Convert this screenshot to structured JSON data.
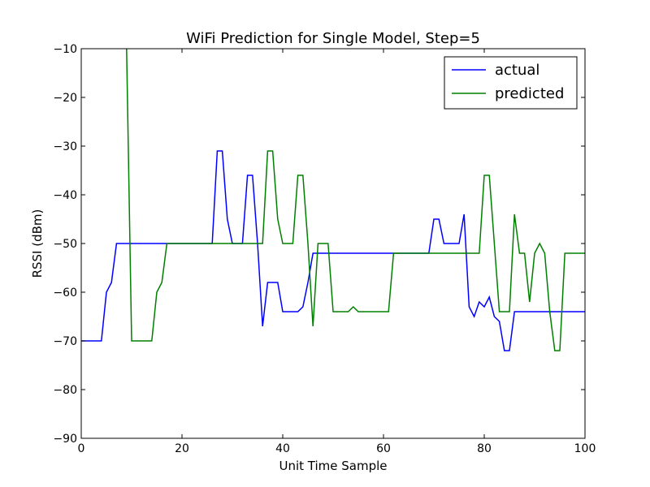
{
  "chart_data": {
    "type": "line",
    "title": "WiFi Prediction for Single Model, Step=5",
    "xlabel": "Unit Time Sample",
    "ylabel": "RSSI (dBm)",
    "xlim": [
      0,
      100
    ],
    "ylim": [
      -90,
      -10
    ],
    "xticks": [
      0,
      20,
      40,
      60,
      80,
      100
    ],
    "yticks": [
      -90,
      -80,
      -70,
      -60,
      -50,
      -40,
      -30,
      -20,
      -10
    ],
    "xtick_labels": [
      "0",
      "20",
      "40",
      "60",
      "80",
      "100"
    ],
    "ytick_labels": [
      "−90",
      "−80",
      "−70",
      "−60",
      "−50",
      "−40",
      "−30",
      "−20",
      "−10"
    ],
    "grid": false,
    "legend_position": "top-right",
    "series": [
      {
        "name": "actual",
        "color": "#0000ff",
        "x": [
          0,
          1,
          2,
          3,
          4,
          5,
          6,
          7,
          8,
          9,
          10,
          11,
          12,
          13,
          14,
          15,
          16,
          17,
          18,
          19,
          20,
          21,
          22,
          23,
          24,
          25,
          26,
          27,
          28,
          29,
          30,
          31,
          32,
          33,
          34,
          35,
          36,
          37,
          38,
          39,
          40,
          41,
          42,
          43,
          44,
          45,
          46,
          47,
          48,
          49,
          50,
          51,
          52,
          53,
          54,
          55,
          56,
          57,
          58,
          59,
          60,
          61,
          62,
          63,
          64,
          65,
          66,
          67,
          68,
          69,
          70,
          71,
          72,
          73,
          74,
          75,
          76,
          77,
          78,
          79,
          80,
          81,
          82,
          83,
          84,
          85,
          86,
          87,
          88,
          89,
          90,
          91,
          92,
          93,
          94,
          95,
          96,
          97,
          98,
          99,
          100
        ],
        "values": [
          -70,
          -70,
          -70,
          -70,
          -70,
          -60,
          -58,
          -50,
          -50,
          -50,
          -50,
          -50,
          -50,
          -50,
          -50,
          -50,
          -50,
          -50,
          -50,
          -50,
          -50,
          -50,
          -50,
          -50,
          -50,
          -50,
          -50,
          -31,
          -31,
          -45,
          -50,
          -50,
          -50,
          -36,
          -36,
          -50,
          -67,
          -58,
          -58,
          -58,
          -64,
          -64,
          -64,
          -64,
          -63,
          -58,
          -52,
          -52,
          -52,
          -52,
          -52,
          -52,
          -52,
          -52,
          -52,
          -52,
          -52,
          -52,
          -52,
          -52,
          -52,
          -52,
          -52,
          -52,
          -52,
          -52,
          -52,
          -52,
          -52,
          -52,
          -45,
          -45,
          -50,
          -50,
          -50,
          -50,
          -44,
          -63,
          -65,
          -62,
          -63,
          -61,
          -65,
          -66,
          -72,
          -72,
          -64,
          -64,
          -64,
          -64,
          -64,
          -64,
          -64,
          -64,
          -64,
          -64,
          -64,
          -64,
          -64,
          -64,
          -64
        ]
      },
      {
        "name": "predicted",
        "color": "#008000",
        "x": [
          0,
          1,
          2,
          3,
          4,
          5,
          6,
          7,
          8,
          9,
          10,
          11,
          12,
          13,
          14,
          15,
          16,
          17,
          18,
          19,
          20,
          21,
          22,
          23,
          24,
          25,
          26,
          27,
          28,
          29,
          30,
          31,
          32,
          33,
          34,
          35,
          36,
          37,
          38,
          39,
          40,
          41,
          42,
          43,
          44,
          45,
          46,
          47,
          48,
          49,
          50,
          51,
          52,
          53,
          54,
          55,
          56,
          57,
          58,
          59,
          60,
          61,
          62,
          63,
          64,
          65,
          66,
          67,
          68,
          69,
          70,
          71,
          72,
          73,
          74,
          75,
          76,
          77,
          78,
          79,
          80,
          81,
          82,
          83,
          84,
          85,
          86,
          87,
          88,
          89,
          90,
          91,
          92,
          93,
          94,
          95,
          96,
          97,
          98,
          99,
          100
        ],
        "values": [
          null,
          null,
          null,
          null,
          null,
          null,
          null,
          null,
          null,
          -10,
          -70,
          -70,
          -70,
          -70,
          -70,
          -60,
          -58,
          -50,
          -50,
          -50,
          -50,
          -50,
          -50,
          -50,
          -50,
          -50,
          -50,
          -50,
          -50,
          -50,
          -50,
          -50,
          -50,
          -50,
          -50,
          -50,
          -50,
          -31,
          -31,
          -45,
          -50,
          -50,
          -50,
          -36,
          -36,
          -50,
          -67,
          -50,
          -50,
          -50,
          -64,
          -64,
          -64,
          -64,
          -63,
          -64,
          -64,
          -64,
          -64,
          -64,
          -64,
          -64,
          -52,
          -52,
          -52,
          -52,
          -52,
          -52,
          -52,
          -52,
          -52,
          -52,
          -52,
          -52,
          -52,
          -52,
          -52,
          -52,
          -52,
          -52,
          -36,
          -36,
          -50,
          -64,
          -64,
          -64,
          -44,
          -52,
          -52,
          -62,
          -52,
          -50,
          -52,
          -64,
          -72,
          -72,
          -52,
          -52,
          -52,
          -52,
          -52
        ]
      }
    ]
  }
}
